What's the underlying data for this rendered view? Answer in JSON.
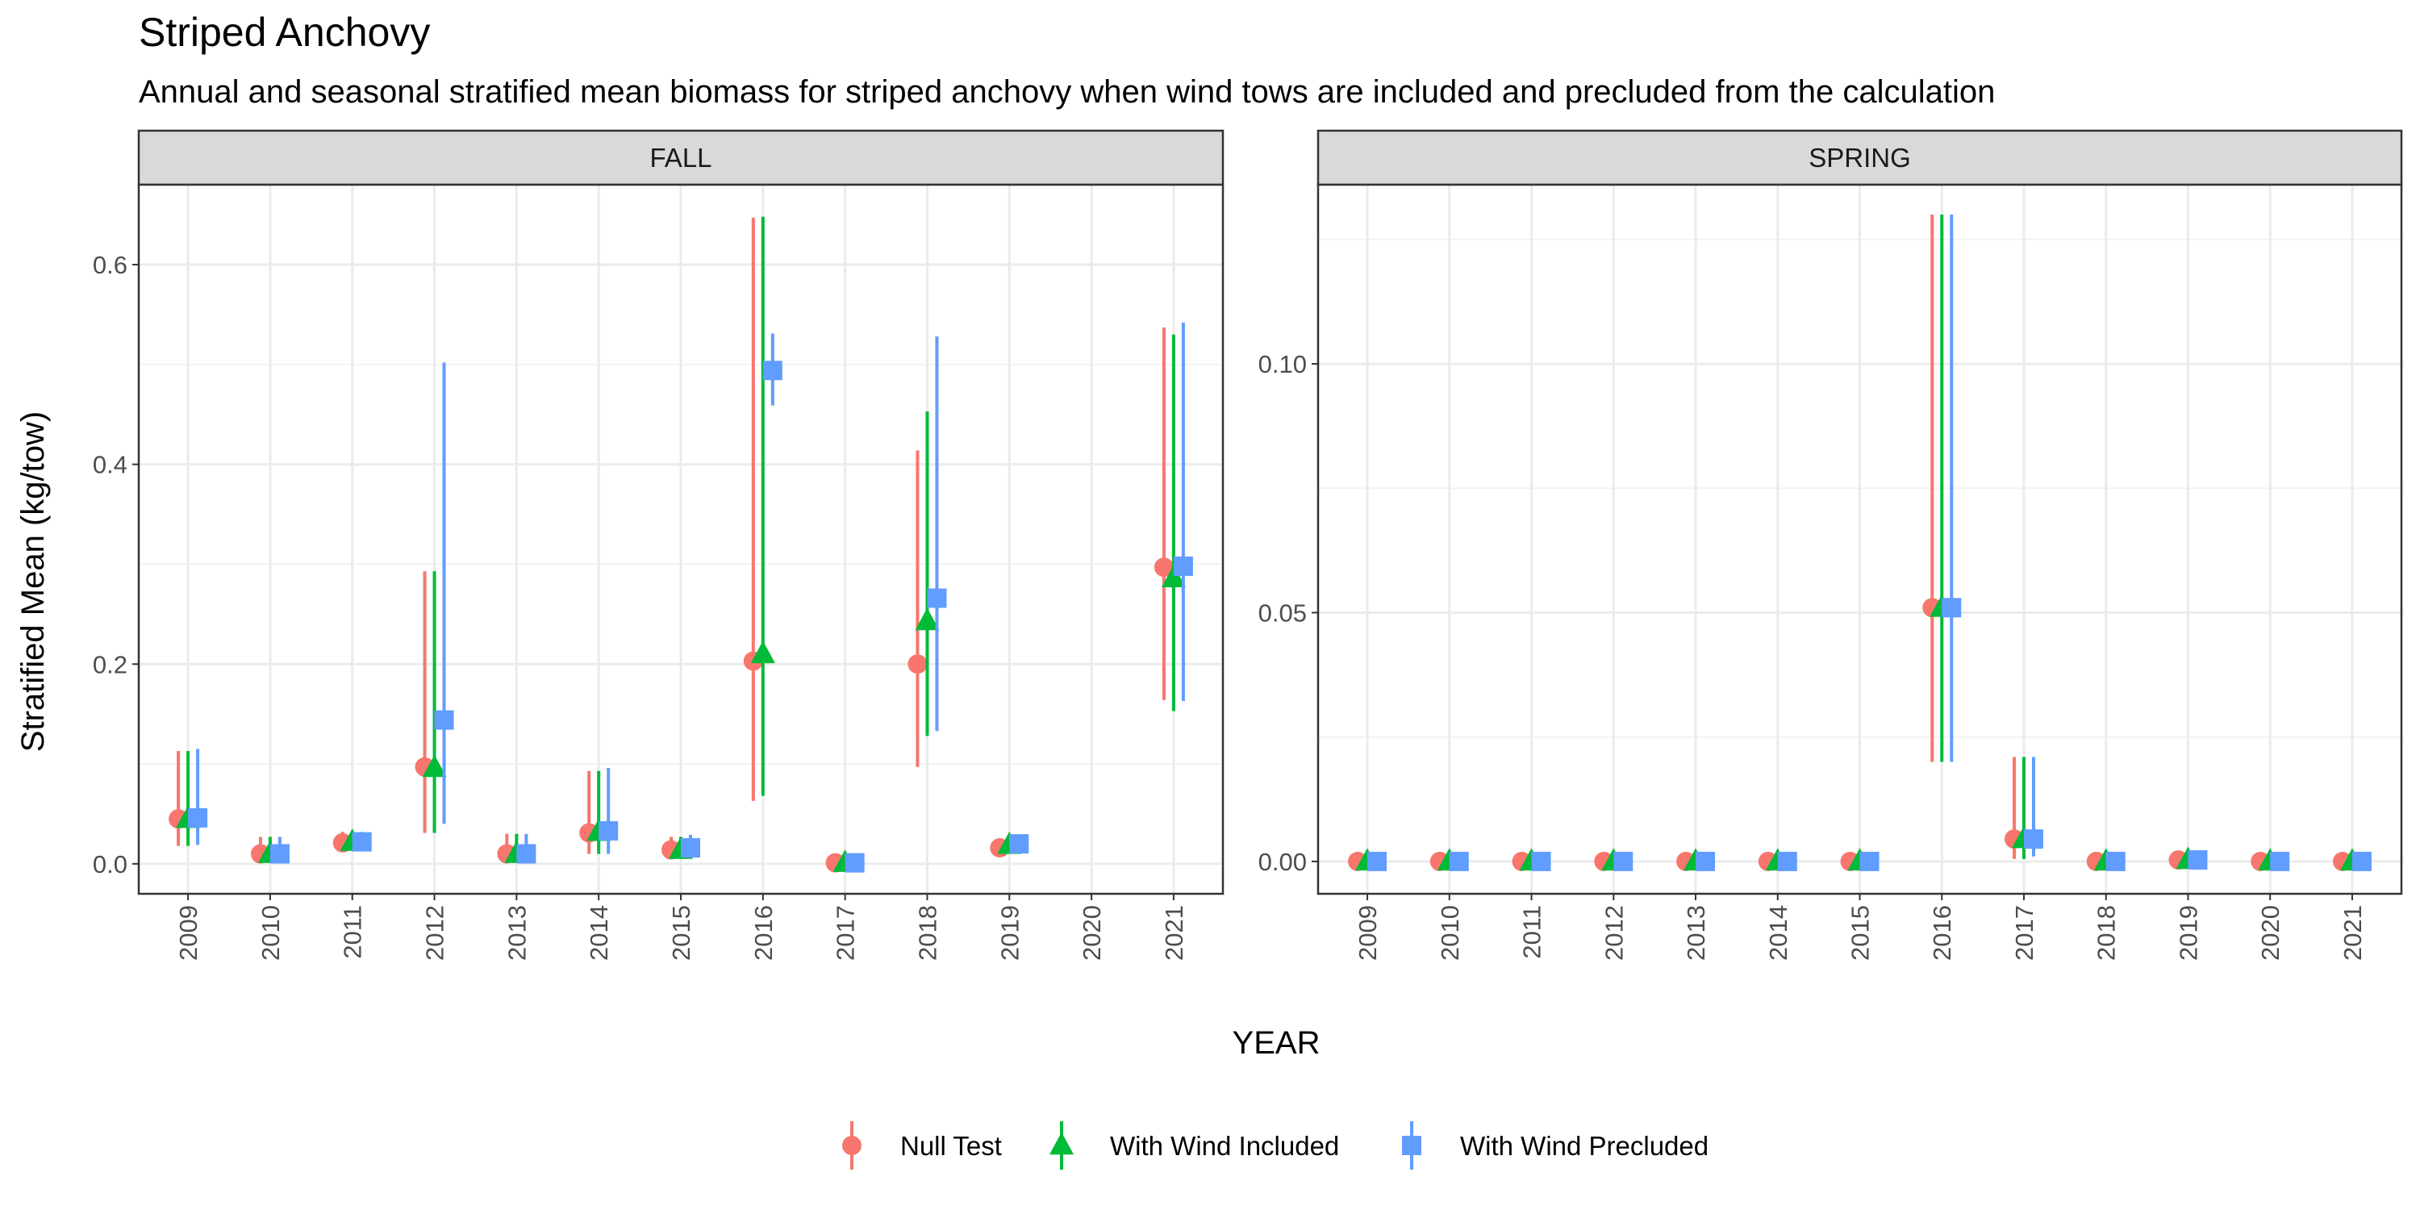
{
  "title": "Striped Anchovy",
  "subtitle": "Annual and seasonal stratified mean biomass for striped anchovy when wind tows are included and precluded from the calculation",
  "chart_data": {
    "type": "scatter",
    "title": "Striped Anchovy",
    "subtitle": "Annual and seasonal stratified mean biomass for striped anchovy when wind tows are included and precluded from the calculation",
    "xlabel": "YEAR",
    "ylabel": "Stratified Mean (kg/tow)",
    "grid": true,
    "legend_position": "bottom",
    "categories": [
      "2009",
      "2010",
      "2011",
      "2012",
      "2013",
      "2014",
      "2015",
      "2016",
      "2017",
      "2018",
      "2019",
      "2020",
      "2021"
    ],
    "series_meta": [
      {
        "name": "Null Test",
        "color": "#F8766D",
        "shape": "circle"
      },
      {
        "name": "With Wind Included",
        "color": "#00BA38",
        "shape": "triangle"
      },
      {
        "name": "With Wind Precluded",
        "color": "#619CFF",
        "shape": "square"
      }
    ],
    "panels": [
      {
        "name": "FALL",
        "ylim": [
          -0.03,
          0.68
        ],
        "yticks": [
          0.0,
          0.2,
          0.4,
          0.6
        ],
        "ytick_labels": [
          "0.0",
          "0.2",
          "0.4",
          "0.6"
        ],
        "series": [
          {
            "name": "Null Test",
            "points": [
              {
                "x": "2009",
                "y": 0.045,
                "lo": 0.018,
                "hi": 0.113
              },
              {
                "x": "2010",
                "y": 0.01,
                "lo": 0.002,
                "hi": 0.027
              },
              {
                "x": "2011",
                "y": 0.021,
                "lo": 0.015,
                "hi": 0.032
              },
              {
                "x": "2012",
                "y": 0.097,
                "lo": 0.031,
                "hi": 0.293
              },
              {
                "x": "2013",
                "y": 0.01,
                "lo": 0.002,
                "hi": 0.03
              },
              {
                "x": "2014",
                "y": 0.031,
                "lo": 0.01,
                "hi": 0.093
              },
              {
                "x": "2015",
                "y": 0.014,
                "lo": 0.005,
                "hi": 0.027
              },
              {
                "x": "2016",
                "y": 0.203,
                "lo": 0.063,
                "hi": 0.647
              },
              {
                "x": "2017",
                "y": 0.001,
                "lo": 0.0,
                "hi": 0.002
              },
              {
                "x": "2018",
                "y": 0.2,
                "lo": 0.097,
                "hi": 0.414
              },
              {
                "x": "2019",
                "y": 0.016,
                "lo": 0.012,
                "hi": 0.022
              },
              {
                "x": "2021",
                "y": 0.297,
                "lo": 0.164,
                "hi": 0.537
              }
            ]
          },
          {
            "name": "With Wind Included",
            "points": [
              {
                "x": "2009",
                "y": 0.045,
                "lo": 0.018,
                "hi": 0.113
              },
              {
                "x": "2010",
                "y": 0.01,
                "lo": 0.002,
                "hi": 0.027
              },
              {
                "x": "2011",
                "y": 0.022,
                "lo": 0.016,
                "hi": 0.032
              },
              {
                "x": "2012",
                "y": 0.096,
                "lo": 0.031,
                "hi": 0.293
              },
              {
                "x": "2013",
                "y": 0.01,
                "lo": 0.002,
                "hi": 0.03
              },
              {
                "x": "2014",
                "y": 0.032,
                "lo": 0.01,
                "hi": 0.093
              },
              {
                "x": "2015",
                "y": 0.014,
                "lo": 0.005,
                "hi": 0.027
              },
              {
                "x": "2016",
                "y": 0.21,
                "lo": 0.068,
                "hi": 0.648
              },
              {
                "x": "2017",
                "y": 0.001,
                "lo": 0.0,
                "hi": 0.002
              },
              {
                "x": "2018",
                "y": 0.243,
                "lo": 0.128,
                "hi": 0.453
              },
              {
                "x": "2019",
                "y": 0.019,
                "lo": 0.014,
                "hi": 0.026
              },
              {
                "x": "2021",
                "y": 0.286,
                "lo": 0.153,
                "hi": 0.53
              }
            ]
          },
          {
            "name": "With Wind Precluded",
            "points": [
              {
                "x": "2009",
                "y": 0.046,
                "lo": 0.019,
                "hi": 0.115
              },
              {
                "x": "2010",
                "y": 0.01,
                "lo": 0.002,
                "hi": 0.027
              },
              {
                "x": "2011",
                "y": 0.022,
                "lo": 0.016,
                "hi": 0.032
              },
              {
                "x": "2012",
                "y": 0.144,
                "lo": 0.04,
                "hi": 0.502
              },
              {
                "x": "2013",
                "y": 0.01,
                "lo": 0.002,
                "hi": 0.03
              },
              {
                "x": "2014",
                "y": 0.033,
                "lo": 0.01,
                "hi": 0.096
              },
              {
                "x": "2015",
                "y": 0.016,
                "lo": 0.006,
                "hi": 0.029
              },
              {
                "x": "2016",
                "y": 0.494,
                "lo": 0.459,
                "hi": 0.531
              },
              {
                "x": "2017",
                "y": 0.001,
                "lo": 0.0,
                "hi": 0.002
              },
              {
                "x": "2018",
                "y": 0.266,
                "lo": 0.133,
                "hi": 0.528
              },
              {
                "x": "2019",
                "y": 0.02,
                "lo": 0.015,
                "hi": 0.027
              },
              {
                "x": "2021",
                "y": 0.298,
                "lo": 0.163,
                "hi": 0.542
              }
            ]
          }
        ]
      },
      {
        "name": "SPRING",
        "ylim": [
          -0.0065,
          0.136
        ],
        "yticks": [
          0.0,
          0.05,
          0.1
        ],
        "ytick_labels": [
          "0.00",
          "0.05",
          "0.10"
        ],
        "series": [
          {
            "name": "Null Test",
            "points": [
              {
                "x": "2009",
                "y": 0.0,
                "lo": 0.0,
                "hi": 0.0
              },
              {
                "x": "2010",
                "y": 0.0,
                "lo": 0.0,
                "hi": 0.0
              },
              {
                "x": "2011",
                "y": 0.0,
                "lo": 0.0,
                "hi": 0.0
              },
              {
                "x": "2012",
                "y": 0.0,
                "lo": 0.0,
                "hi": 0.0
              },
              {
                "x": "2013",
                "y": 0.0,
                "lo": 0.0,
                "hi": 0.0
              },
              {
                "x": "2014",
                "y": 0.0,
                "lo": 0.0,
                "hi": 0.0
              },
              {
                "x": "2015",
                "y": 0.0,
                "lo": 0.0,
                "hi": 0.0
              },
              {
                "x": "2016",
                "y": 0.051,
                "lo": 0.02,
                "hi": 0.13
              },
              {
                "x": "2017",
                "y": 0.0045,
                "lo": 0.0005,
                "hi": 0.021
              },
              {
                "x": "2018",
                "y": 0.0,
                "lo": 0.0,
                "hi": 0.0
              },
              {
                "x": "2019",
                "y": 0.0003,
                "lo": 0.0,
                "hi": 0.0006
              },
              {
                "x": "2020",
                "y": 0.0,
                "lo": 0.0,
                "hi": 0.0
              },
              {
                "x": "2021",
                "y": 0.0,
                "lo": 0.0,
                "hi": 0.0
              }
            ]
          },
          {
            "name": "With Wind Included",
            "points": [
              {
                "x": "2009",
                "y": 0.0,
                "lo": 0.0,
                "hi": 0.0
              },
              {
                "x": "2010",
                "y": 0.0,
                "lo": 0.0,
                "hi": 0.0
              },
              {
                "x": "2011",
                "y": 0.0,
                "lo": 0.0,
                "hi": 0.0
              },
              {
                "x": "2012",
                "y": 0.0,
                "lo": 0.0,
                "hi": 0.0
              },
              {
                "x": "2013",
                "y": 0.0,
                "lo": 0.0,
                "hi": 0.0
              },
              {
                "x": "2014",
                "y": 0.0,
                "lo": 0.0,
                "hi": 0.0
              },
              {
                "x": "2015",
                "y": 0.0,
                "lo": 0.0,
                "hi": 0.0
              },
              {
                "x": "2016",
                "y": 0.051,
                "lo": 0.02,
                "hi": 0.13
              },
              {
                "x": "2017",
                "y": 0.0045,
                "lo": 0.0005,
                "hi": 0.021
              },
              {
                "x": "2018",
                "y": 0.0,
                "lo": 0.0,
                "hi": 0.0
              },
              {
                "x": "2019",
                "y": 0.0003,
                "lo": 0.0,
                "hi": 0.0006
              },
              {
                "x": "2020",
                "y": 0.0,
                "lo": 0.0,
                "hi": 0.0
              },
              {
                "x": "2021",
                "y": 0.0,
                "lo": 0.0,
                "hi": 0.0
              }
            ]
          },
          {
            "name": "With Wind Precluded",
            "points": [
              {
                "x": "2009",
                "y": 0.0,
                "lo": 0.0,
                "hi": 0.0
              },
              {
                "x": "2010",
                "y": 0.0,
                "lo": 0.0,
                "hi": 0.0
              },
              {
                "x": "2011",
                "y": 0.0,
                "lo": 0.0,
                "hi": 0.0
              },
              {
                "x": "2012",
                "y": 0.0,
                "lo": 0.0,
                "hi": 0.0
              },
              {
                "x": "2013",
                "y": 0.0,
                "lo": 0.0,
                "hi": 0.0
              },
              {
                "x": "2014",
                "y": 0.0,
                "lo": 0.0,
                "hi": 0.0
              },
              {
                "x": "2015",
                "y": 0.0,
                "lo": 0.0,
                "hi": 0.0
              },
              {
                "x": "2016",
                "y": 0.051,
                "lo": 0.02,
                "hi": 0.13
              },
              {
                "x": "2017",
                "y": 0.0045,
                "lo": 0.001,
                "hi": 0.021
              },
              {
                "x": "2018",
                "y": 0.0,
                "lo": 0.0,
                "hi": 0.0
              },
              {
                "x": "2019",
                "y": 0.0003,
                "lo": 0.0,
                "hi": 0.0006
              },
              {
                "x": "2020",
                "y": 0.0,
                "lo": 0.0,
                "hi": 0.0
              },
              {
                "x": "2021",
                "y": 0.0,
                "lo": 0.0,
                "hi": 0.0
              }
            ]
          }
        ]
      }
    ]
  }
}
